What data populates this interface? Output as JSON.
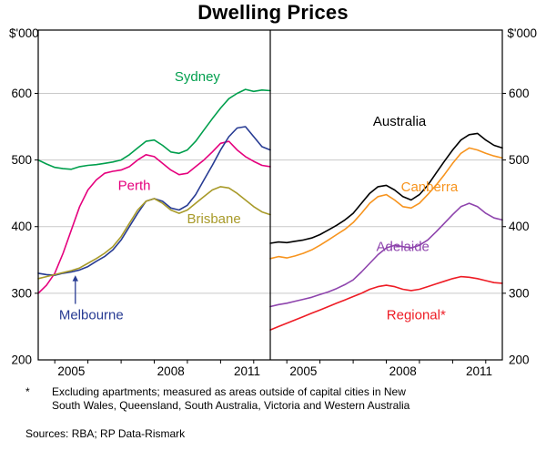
{
  "title": "Dwelling Prices",
  "footnote": {
    "marker": "*",
    "text": "Excluding apartments; measured as areas outside of capital cities in New South Wales, Queensland, South Australia, Victoria and Western Australia",
    "sources": "Sources: RBA; RP Data-Rismark"
  },
  "chart_data": {
    "type": "line",
    "title": "Dwelling Prices",
    "ylabel": "$'000",
    "ylim": [
      200,
      695
    ],
    "xlim": [
      2004.5,
      2011.5
    ],
    "yticks": [
      200,
      300,
      400,
      500,
      600
    ],
    "grid_values": [
      300,
      400,
      500,
      600
    ],
    "xticks": [
      2005,
      2006,
      2007,
      2008,
      2009,
      2010,
      2011
    ],
    "xtick_labels": [
      2005,
      2008,
      2011
    ],
    "legend_position": "in-plot-labels",
    "grid": true,
    "x": [
      2004.5,
      2004.75,
      2005,
      2005.25,
      2005.5,
      2005.75,
      2006,
      2006.25,
      2006.5,
      2006.75,
      2007,
      2007.25,
      2007.5,
      2007.75,
      2008,
      2008.25,
      2008.5,
      2008.75,
      2009,
      2009.25,
      2009.5,
      2009.75,
      2010,
      2010.25,
      2010.5,
      2010.75,
      2011,
      2011.25,
      2011.5
    ],
    "panels": [
      {
        "side": "left",
        "series": [
          {
            "name": "Sydney",
            "color": "#009F4D",
            "values": [
              500,
              494,
              489,
              487,
              486,
              490,
              492,
              493,
              495,
              497,
              500,
              508,
              518,
              528,
              530,
              522,
              512,
              510,
              515,
              528,
              545,
              562,
              578,
              592,
              600,
              606,
              603,
              605,
              604
            ],
            "label": {
              "text": "Sydney",
              "x": 2009.3,
              "y": 625
            }
          },
          {
            "name": "Perth",
            "color": "#E5007D",
            "values": [
              300,
              312,
              330,
              360,
              395,
              430,
              455,
              470,
              480,
              483,
              485,
              490,
              500,
              508,
              505,
              495,
              485,
              478,
              480,
              490,
              500,
              512,
              525,
              528,
              515,
              505,
              498,
              492,
              490
            ],
            "label": {
              "text": "Perth",
              "x": 2007.4,
              "y": 462
            }
          },
          {
            "name": "Melbourne",
            "color": "#273B93",
            "values": [
              330,
              328,
              327,
              330,
              332,
              335,
              340,
              348,
              355,
              365,
              380,
              400,
              420,
              438,
              442,
              438,
              428,
              425,
              432,
              448,
              470,
              492,
              515,
              535,
              548,
              550,
              535,
              520,
              515
            ],
            "label": {
              "text": "Melbourne",
              "x": 2006.1,
              "y": 268
            }
          },
          {
            "name": "Brisbane",
            "color": "#A89A29",
            "values": [
              322,
              325,
              328,
              331,
              334,
              338,
              345,
              352,
              360,
              370,
              385,
              405,
              425,
              438,
              442,
              435,
              425,
              420,
              425,
              435,
              445,
              455,
              460,
              458,
              450,
              440,
              430,
              422,
              418
            ],
            "label": {
              "text": "Brisbane",
              "x": 2009.8,
              "y": 412
            }
          }
        ]
      },
      {
        "side": "right",
        "series": [
          {
            "name": "Australia",
            "color": "#000000",
            "values": [
              375,
              377,
              376,
              378,
              380,
              383,
              388,
              395,
              402,
              410,
              420,
              435,
              450,
              460,
              462,
              455,
              445,
              440,
              448,
              462,
              480,
              498,
              515,
              530,
              538,
              540,
              530,
              522,
              518
            ],
            "label": {
              "text": "Australia",
              "x": 2008.4,
              "y": 558
            }
          },
          {
            "name": "Canberra",
            "color": "#F7941E",
            "values": [
              352,
              355,
              353,
              356,
              360,
              365,
              372,
              380,
              388,
              396,
              406,
              420,
              435,
              445,
              448,
              440,
              430,
              428,
              435,
              448,
              462,
              478,
              495,
              510,
              518,
              515,
              510,
              506,
              503
            ],
            "label": {
              "text": "Canberra",
              "x": 2009.3,
              "y": 460
            }
          },
          {
            "name": "Adelaide",
            "color": "#8E44AD",
            "values": [
              280,
              283,
              285,
              288,
              291,
              294,
              298,
              302,
              307,
              313,
              320,
              332,
              345,
              358,
              368,
              372,
              370,
              368,
              372,
              380,
              392,
              405,
              418,
              430,
              435,
              430,
              420,
              413,
              410
            ],
            "label": {
              "text": "Adelaide",
              "x": 2008.5,
              "y": 370
            }
          },
          {
            "name": "Regional*",
            "color": "#EE1C25",
            "values": [
              245,
              250,
              255,
              260,
              265,
              270,
              275,
              280,
              285,
              290,
              295,
              300,
              306,
              310,
              312,
              310,
              306,
              304,
              306,
              310,
              314,
              318,
              322,
              325,
              324,
              322,
              319,
              316,
              315
            ],
            "label": {
              "text": "Regional*",
              "x": 2008.9,
              "y": 268
            }
          }
        ]
      }
    ],
    "arrow": {
      "panel": 0,
      "x": 2005.62,
      "y_from": 284,
      "y_to": 327,
      "color": "#273B93",
      "points_to": "Melbourne"
    }
  }
}
